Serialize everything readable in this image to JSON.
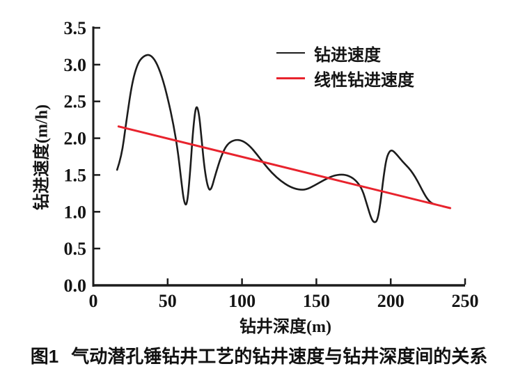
{
  "figure": {
    "caption": {
      "prefix": "图1",
      "text": "气动潜孔锤钻井工艺的钻井速度与钻井深度间的关系"
    }
  },
  "colors": {
    "background": "#ffffff",
    "axis": "#1c1c1c",
    "curve": "#1c1c1c",
    "trend": "#e8232d",
    "text": "#141414"
  },
  "chart_data": {
    "type": "line",
    "title": "",
    "xlabel": "钻井深度(m)",
    "ylabel": "钻进速度(m/h)",
    "xlim": [
      0,
      250
    ],
    "ylim": [
      0,
      3.5
    ],
    "xticks": [
      "0",
      "50",
      "100",
      "150",
      "200",
      "250"
    ],
    "yticks": [
      "0.0",
      "0.5",
      "1.0",
      "1.5",
      "2.0",
      "2.5",
      "3.0",
      "3.5"
    ],
    "grid": false,
    "legend_position": "top-right-inside",
    "series": [
      {
        "name": "钻进速度",
        "color": "#1c1c1c",
        "stroke_width": 2.6,
        "points": [
          [
            16,
            1.57
          ],
          [
            19,
            1.75
          ],
          [
            22,
            2.2
          ],
          [
            26,
            2.75
          ],
          [
            30,
            3.03
          ],
          [
            34,
            3.12
          ],
          [
            38,
            3.14
          ],
          [
            42,
            3.05
          ],
          [
            46,
            2.85
          ],
          [
            50,
            2.55
          ],
          [
            54,
            2.18
          ],
          [
            57,
            1.8
          ],
          [
            59,
            1.45
          ],
          [
            61,
            1.12
          ],
          [
            63,
            1.08
          ],
          [
            65,
            1.5
          ],
          [
            67,
            2.1
          ],
          [
            69,
            2.46
          ],
          [
            71,
            2.36
          ],
          [
            73,
            1.95
          ],
          [
            75,
            1.55
          ],
          [
            77,
            1.33
          ],
          [
            79,
            1.28
          ],
          [
            82,
            1.5
          ],
          [
            86,
            1.76
          ],
          [
            90,
            1.92
          ],
          [
            95,
            1.98
          ],
          [
            100,
            1.97
          ],
          [
            105,
            1.9
          ],
          [
            110,
            1.78
          ],
          [
            115,
            1.65
          ],
          [
            120,
            1.53
          ],
          [
            126,
            1.42
          ],
          [
            132,
            1.34
          ],
          [
            138,
            1.3
          ],
          [
            143,
            1.3
          ],
          [
            149,
            1.36
          ],
          [
            155,
            1.43
          ],
          [
            161,
            1.49
          ],
          [
            167,
            1.51
          ],
          [
            172,
            1.49
          ],
          [
            177,
            1.42
          ],
          [
            181,
            1.3
          ],
          [
            184,
            1.1
          ],
          [
            187,
            0.9
          ],
          [
            189,
            0.85
          ],
          [
            191,
            0.88
          ],
          [
            193,
            1.1
          ],
          [
            195,
            1.45
          ],
          [
            197,
            1.72
          ],
          [
            199,
            1.82
          ],
          [
            201,
            1.84
          ],
          [
            204,
            1.78
          ],
          [
            208,
            1.68
          ],
          [
            212,
            1.6
          ],
          [
            215,
            1.52
          ],
          [
            218,
            1.42
          ],
          [
            221,
            1.3
          ],
          [
            224,
            1.19
          ],
          [
            227,
            1.12
          ],
          [
            230,
            1.1
          ]
        ]
      },
      {
        "name": "线性钻进速度",
        "color": "#e8232d",
        "stroke_width": 3,
        "points": [
          [
            17,
            2.16
          ],
          [
            240,
            1.05
          ]
        ]
      }
    ]
  }
}
